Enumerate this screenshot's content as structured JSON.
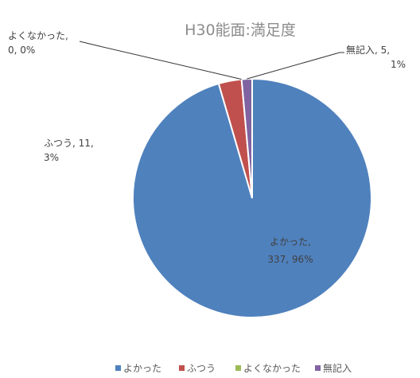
{
  "chart_data": {
    "type": "pie",
    "title": "H30能面:満足度",
    "categories": [
      "よかった",
      "ふつう",
      "よくなかった",
      "無記入"
    ],
    "values": [
      337,
      11,
      0,
      5
    ],
    "percentages": [
      "96%",
      "3%",
      "0%",
      "1%"
    ],
    "colors": [
      "#4f81bd",
      "#c0504d",
      "#9bbb59",
      "#8064a2"
    ],
    "data_labels": [
      [
        "よかった,",
        "337, 96%"
      ],
      [
        "ふつう, 11,",
        "3%"
      ],
      [
        "よくなかった,",
        "0, 0%"
      ],
      [
        "無記入, 5,",
        "1%"
      ]
    ],
    "legend_position": "bottom"
  }
}
